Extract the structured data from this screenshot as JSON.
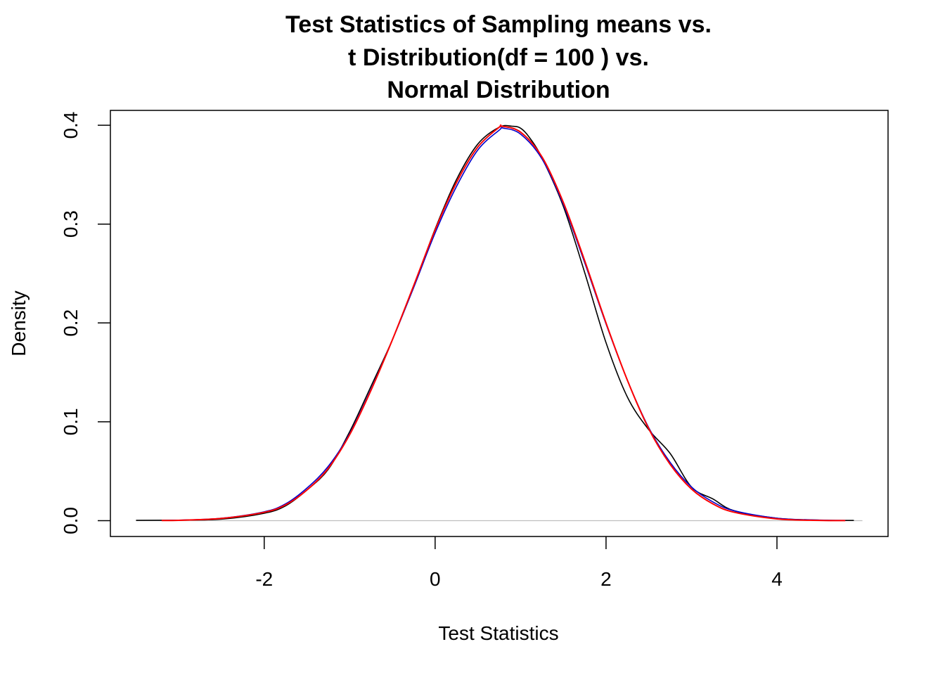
{
  "chart_data": {
    "type": "line",
    "title": [
      "Test Statistics of Sampling means vs.",
      "t Distribution(df = 100 ) vs.",
      "Normal Distribution"
    ],
    "xlabel": "Test Statistics",
    "ylabel": "Density",
    "xlim": [
      -3.8,
      5.3
    ],
    "ylim": [
      -0.016,
      0.415
    ],
    "xticks": [
      -2,
      0,
      2,
      4
    ],
    "xtick_labels": [
      "-2",
      "0",
      "2",
      "4"
    ],
    "yticks": [
      0.0,
      0.1,
      0.2,
      0.3,
      0.4
    ],
    "ytick_labels": [
      "0.0",
      "0.1",
      "0.2",
      "0.3",
      "0.4"
    ],
    "baseline": 0,
    "series": [
      {
        "color": "#000000",
        "points": [
          [
            -3.5,
            0.0003
          ],
          [
            -3.0,
            0.0005
          ],
          [
            -2.5,
            0.0015
          ],
          [
            -2.0,
            0.0075
          ],
          [
            -1.75,
            0.015
          ],
          [
            -1.5,
            0.031
          ],
          [
            -1.25,
            0.052
          ],
          [
            -1.0,
            0.09
          ],
          [
            -0.75,
            0.136
          ],
          [
            -0.5,
            0.183
          ],
          [
            -0.25,
            0.237
          ],
          [
            0.0,
            0.295
          ],
          [
            0.25,
            0.345
          ],
          [
            0.5,
            0.381
          ],
          [
            0.75,
            0.398
          ],
          [
            0.9,
            0.399
          ],
          [
            1.0,
            0.397
          ],
          [
            1.1,
            0.388
          ],
          [
            1.25,
            0.367
          ],
          [
            1.5,
            0.318
          ],
          [
            1.75,
            0.251
          ],
          [
            2.0,
            0.18
          ],
          [
            2.25,
            0.125
          ],
          [
            2.5,
            0.092
          ],
          [
            2.75,
            0.068
          ],
          [
            3.0,
            0.034
          ],
          [
            3.25,
            0.022
          ],
          [
            3.5,
            0.01
          ],
          [
            4.0,
            0.0025
          ],
          [
            4.5,
            0.0005
          ],
          [
            4.9,
            0.0002
          ]
        ]
      },
      {
        "color": "#0000cc",
        "points": [
          [
            -3.2,
            0.0002
          ],
          [
            -3.0,
            0.0005
          ],
          [
            -2.5,
            0.0025
          ],
          [
            -2.0,
            0.009
          ],
          [
            -1.75,
            0.017
          ],
          [
            -1.5,
            0.033
          ],
          [
            -1.25,
            0.055
          ],
          [
            -1.0,
            0.088
          ],
          [
            -0.75,
            0.133
          ],
          [
            -0.5,
            0.183
          ],
          [
            -0.25,
            0.236
          ],
          [
            0.0,
            0.291
          ],
          [
            0.25,
            0.338
          ],
          [
            0.5,
            0.375
          ],
          [
            0.75,
            0.395
          ],
          [
            0.8,
            0.397
          ],
          [
            1.0,
            0.391
          ],
          [
            1.25,
            0.366
          ],
          [
            1.5,
            0.32
          ],
          [
            1.75,
            0.261
          ],
          [
            2.0,
            0.199
          ],
          [
            2.25,
            0.142
          ],
          [
            2.5,
            0.094
          ],
          [
            2.75,
            0.059
          ],
          [
            3.0,
            0.034
          ],
          [
            3.25,
            0.019
          ],
          [
            3.5,
            0.01
          ],
          [
            4.0,
            0.0025
          ],
          [
            4.5,
            0.0006
          ],
          [
            4.8,
            0.0002
          ]
        ]
      },
      {
        "color": "#ff0000",
        "points": [
          [
            -3.2,
            0.0002
          ],
          [
            -3.0,
            0.0004
          ],
          [
            -2.5,
            0.0023
          ],
          [
            -2.0,
            0.0085
          ],
          [
            -1.75,
            0.016
          ],
          [
            -1.5,
            0.031
          ],
          [
            -1.25,
            0.053
          ],
          [
            -1.0,
            0.087
          ],
          [
            -0.75,
            0.132
          ],
          [
            -0.5,
            0.183
          ],
          [
            -0.25,
            0.238
          ],
          [
            0.0,
            0.294
          ],
          [
            0.25,
            0.342
          ],
          [
            0.5,
            0.378
          ],
          [
            0.75,
            0.398
          ],
          [
            0.78,
            0.399
          ],
          [
            1.0,
            0.393
          ],
          [
            1.25,
            0.368
          ],
          [
            1.5,
            0.322
          ],
          [
            1.75,
            0.263
          ],
          [
            2.0,
            0.2
          ],
          [
            2.25,
            0.142
          ],
          [
            2.5,
            0.093
          ],
          [
            2.75,
            0.057
          ],
          [
            3.0,
            0.032
          ],
          [
            3.25,
            0.017
          ],
          [
            3.5,
            0.0085
          ],
          [
            4.0,
            0.0018
          ],
          [
            4.5,
            0.0003
          ],
          [
            4.8,
            0.0001
          ]
        ]
      }
    ]
  }
}
